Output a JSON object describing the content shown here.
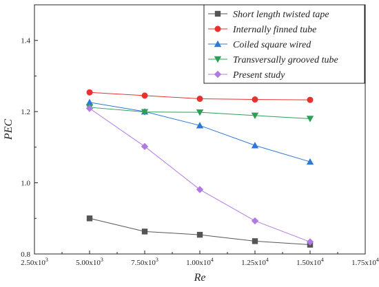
{
  "chart_data": {
    "type": "line",
    "xlabel": "Re",
    "ylabel": "PEC",
    "xlim": [
      2500,
      17500
    ],
    "ylim": [
      0.8,
      1.5
    ],
    "x_ticks": [
      2500,
      5000,
      7500,
      10000,
      12500,
      15000,
      17500
    ],
    "x_tick_labels": [
      "2.50x10^3",
      "5.00x10^3",
      "7.50x10^3",
      "1.00x10^4",
      "1.25x10^4",
      "1.50x10^4",
      "1.75x10^4"
    ],
    "y_ticks": [
      0.8,
      1.0,
      1.2,
      1.4
    ],
    "y_tick_labels": [
      "0.8",
      "1.0",
      "1.2",
      "1.4"
    ],
    "grid": false,
    "legend_position": "top-right",
    "x": [
      5000,
      7500,
      10000,
      12500,
      15000
    ],
    "series": [
      {
        "name": "Short length twisted tape",
        "color": "#555555",
        "marker": "square",
        "values": [
          0.9,
          0.863,
          0.854,
          0.836,
          0.826
        ]
      },
      {
        "name": "Internally finned tube",
        "color": "#e8322f",
        "marker": "circle",
        "values": [
          1.254,
          1.245,
          1.236,
          1.234,
          1.233
        ]
      },
      {
        "name": "Coiled square wired",
        "color": "#2e78d6",
        "marker": "triangle-up",
        "values": [
          1.226,
          1.2,
          1.161,
          1.105,
          1.059
        ]
      },
      {
        "name": "Transversally grooved tube",
        "color": "#2ca055",
        "marker": "triangle-down",
        "values": [
          1.212,
          1.199,
          1.198,
          1.189,
          1.18
        ]
      },
      {
        "name": "Present study",
        "color": "#b07ae0",
        "marker": "diamond",
        "values": [
          1.209,
          1.102,
          0.981,
          0.893,
          0.834
        ]
      }
    ]
  }
}
